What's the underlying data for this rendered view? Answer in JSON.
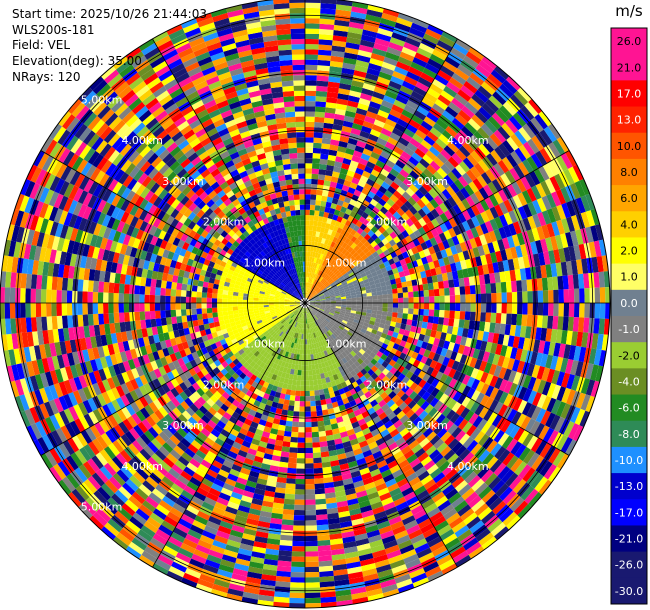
{
  "chart_data": {
    "type": "heatmap",
    "subtype": "radar-ppi",
    "info": {
      "start_time": "Start time: 2025/10/26 21:44:03",
      "instrument": "WLS200s-181",
      "field": "Field: VEL",
      "elevation": "Elevation(deg): 35.00",
      "nrays": "NRays: 120"
    },
    "nrays": 120,
    "range_max_km": 5.3,
    "range_rings_km": [
      1,
      2,
      3,
      4,
      5
    ],
    "range_labels": [
      "1.00km",
      "2.00km",
      "3.00km",
      "4.00km",
      "5.00km"
    ],
    "colorbar": {
      "unit": "m/s",
      "ticks": [
        "26.0",
        "21.0",
        "17.0",
        "13.0",
        "10.0",
        "8.0",
        "6.0",
        "4.0",
        "2.0",
        "1.0",
        "0.0",
        "-1.0",
        "-2.0",
        "-4.0",
        "-6.0",
        "-8.0",
        "-10.0",
        "-13.0",
        "-17.0",
        "-21.0",
        "-26.0",
        "-30.0"
      ],
      "colors": [
        "#ff1493",
        "#ff1493",
        "#ff0000",
        "#ff2200",
        "#ff5500",
        "#ff8000",
        "#ffa500",
        "#ffd000",
        "#ffff00",
        "#ffff66",
        "#708090",
        "#808080",
        "#9acd32",
        "#6b8e23",
        "#228b22",
        "#2e8b57",
        "#1e90ff",
        "#0000cd",
        "#0000ff",
        "#000080",
        "#191970",
        "#191970"
      ]
    },
    "inner_field": {
      "description_sectors": [
        {
          "az_start": 235,
          "az_end": 300,
          "value": 2.0
        },
        {
          "az_start": 300,
          "az_end": 345,
          "value": -13.0
        },
        {
          "az_start": 345,
          "az_end": 360,
          "value": -6.0
        },
        {
          "az_start": 0,
          "az_end": 25,
          "value": 4.0
        },
        {
          "az_start": 25,
          "az_end": 55,
          "value": 8.0
        },
        {
          "az_start": 55,
          "az_end": 85,
          "value": 0.0
        },
        {
          "az_start": 85,
          "az_end": 150,
          "value": -1.0
        },
        {
          "az_start": 150,
          "az_end": 235,
          "value": -2.0
        }
      ],
      "range_km": 1.6
    }
  }
}
